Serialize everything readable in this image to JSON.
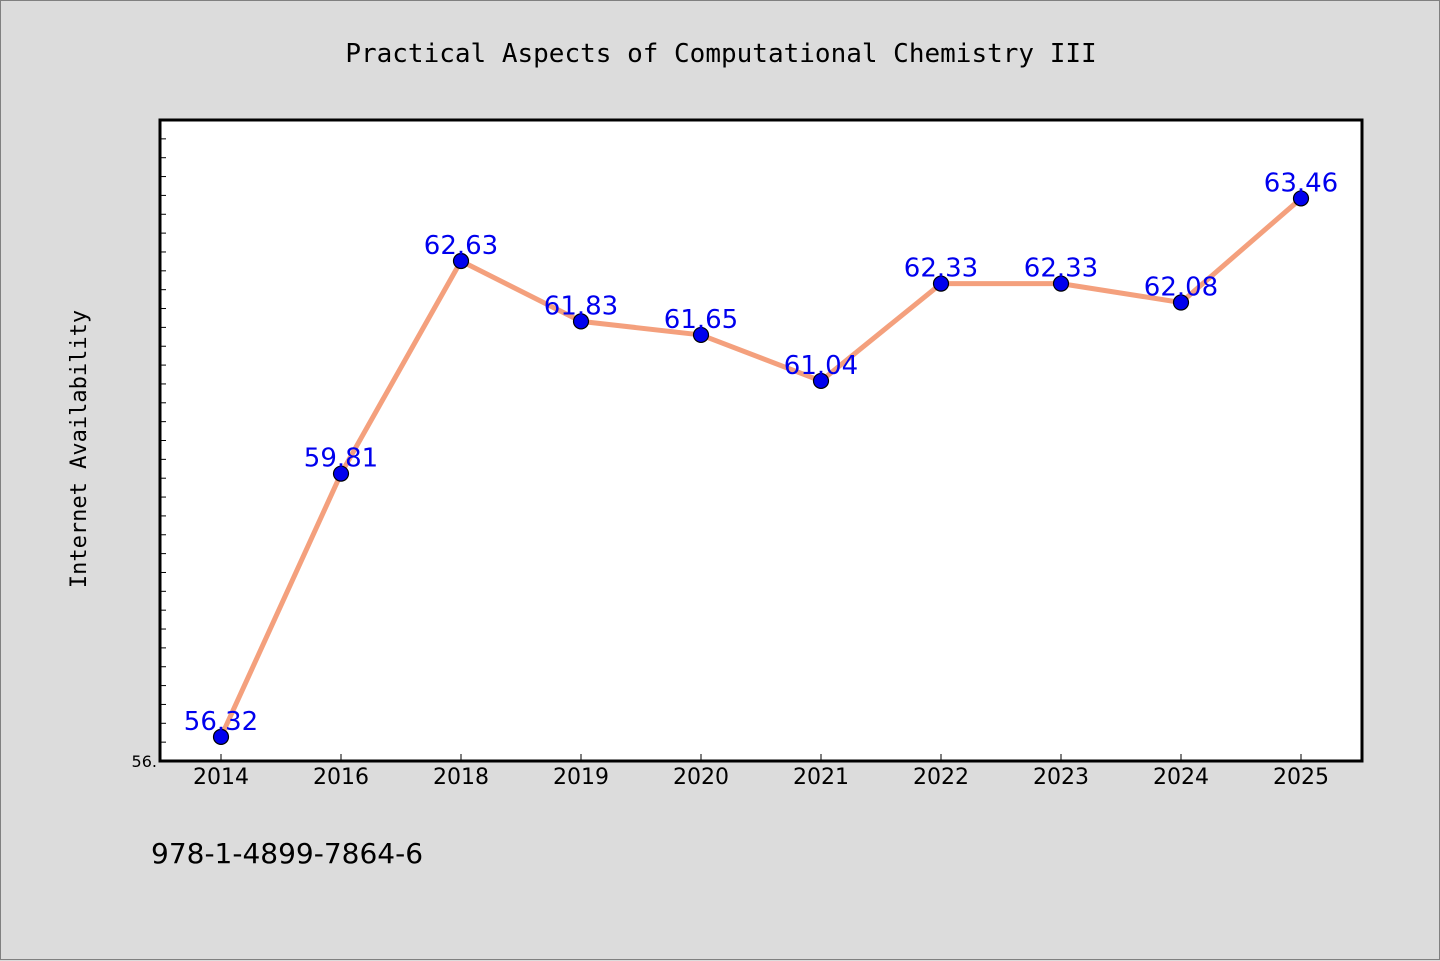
{
  "chart_data": {
    "type": "line",
    "title": "Practical Aspects of Computational Chemistry III",
    "ylabel": "Internet Availability",
    "xlabel": "",
    "categories": [
      "2014",
      "2016",
      "2018",
      "2019",
      "2020",
      "2021",
      "2022",
      "2023",
      "2024",
      "2025"
    ],
    "series": [
      {
        "values": [
          56.32,
          59.81,
          62.63,
          61.83,
          61.65,
          61.04,
          62.33,
          62.33,
          62.08,
          63.46
        ]
      }
    ],
    "data_labels": [
      "56.32",
      "59.81",
      "62.63",
      "61.83",
      "61.65",
      "61.04",
      "62.33",
      "62.33",
      "62.08",
      "63.46"
    ],
    "ylim": [
      56.0,
      64.5
    ],
    "y_tick_label": "56.",
    "grid": false,
    "legend": "none",
    "colors": {
      "line": "#f4a07d",
      "marker": "#0000ee",
      "label": "#0000ee",
      "background": "#dcdcdc",
      "plot_background": "#ffffff"
    }
  },
  "footer": {
    "isbn": "978-1-4899-7864-6"
  }
}
